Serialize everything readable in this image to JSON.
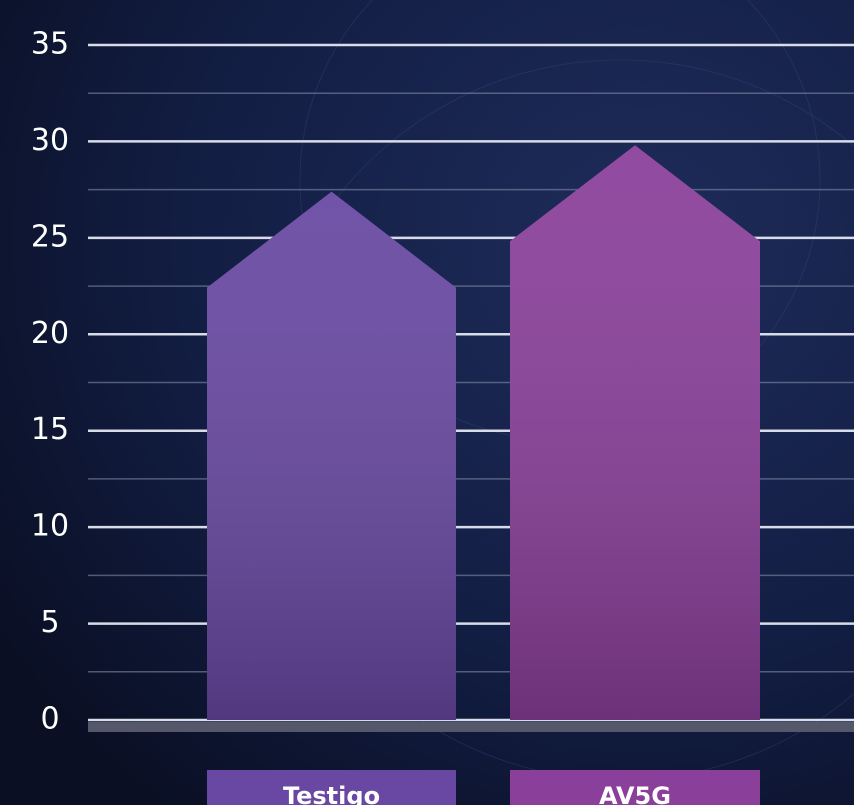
{
  "chart_data": {
    "type": "bar",
    "categories": [
      "Testigo",
      "AV5G"
    ],
    "values": [
      27.4,
      29.8
    ],
    "colors": [
      "#6848a2",
      "#8a3f9a"
    ],
    "ylim": [
      0,
      35
    ],
    "yticks": [
      0,
      5,
      10,
      15,
      20,
      25,
      30,
      35
    ],
    "grid": true
  }
}
